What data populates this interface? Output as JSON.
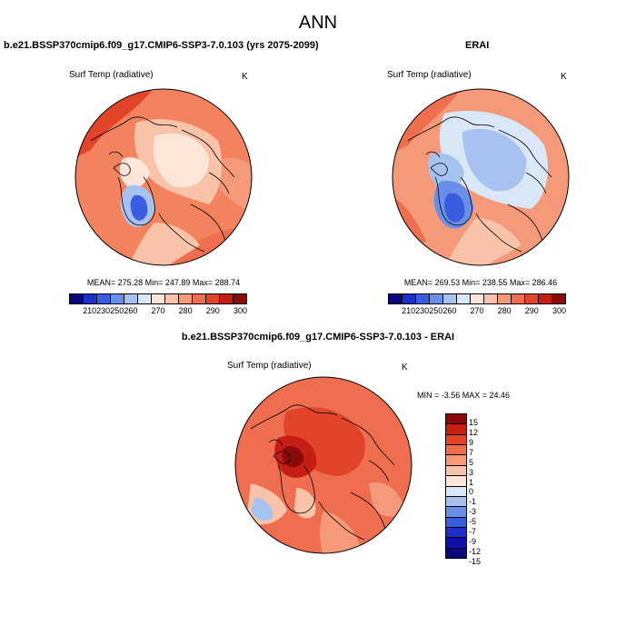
{
  "figure": {
    "title": "ANN"
  },
  "panels": {
    "model": {
      "title": "b.e21.BSSP370cmip6.f09_g17.CMIP6-SSP3-7.0.103 (yrs 2075-2099)",
      "variable": "Surf Temp (radiative)",
      "units": "K",
      "stats": "MEAN= 275.28  Min= 247.89  Max= 288.74"
    },
    "obs": {
      "title": "ERAI",
      "variable": "Surf Temp (radiative)",
      "units": "K",
      "stats": "MEAN= 269.53  Min= 238.55  Max= 286.46"
    },
    "diff": {
      "title": "b.e21.BSSP370cmip6.f09_g17.CMIP6-SSP3-7.0.103 - ERAI",
      "variable": "Surf Temp (radiative)",
      "units": "K",
      "stats": "MIN =  -3.56 MAX =  24.46"
    }
  },
  "colorbar_abs": {
    "colors": [
      "#08087a",
      "#1d2fc6",
      "#3a5de0",
      "#6a8fe8",
      "#a6c3f0",
      "#d9e7f7",
      "#fbe6d9",
      "#f8c3a9",
      "#f49a7a",
      "#ee6e4f",
      "#e2442a",
      "#c71e14",
      "#8a0a0a"
    ],
    "labels": [
      "210",
      "230",
      "250",
      "260",
      "270",
      "280",
      "290",
      "300"
    ]
  },
  "colorbar_diff": {
    "colors": [
      "#8a0a0a",
      "#c71e14",
      "#e2442a",
      "#ee6e4f",
      "#f49a7a",
      "#f8c3a9",
      "#fbe6d9",
      "#d9e7f7",
      "#a6c3f0",
      "#6a8fe8",
      "#3a5de0",
      "#1d2fc6",
      "#1010a8",
      "#08087a"
    ],
    "labels": [
      "15",
      "12",
      "9",
      "7",
      "5",
      "3",
      "1",
      "0",
      "-1",
      "-3",
      "-5",
      "-7",
      "-9",
      "-12",
      "-15"
    ]
  }
}
